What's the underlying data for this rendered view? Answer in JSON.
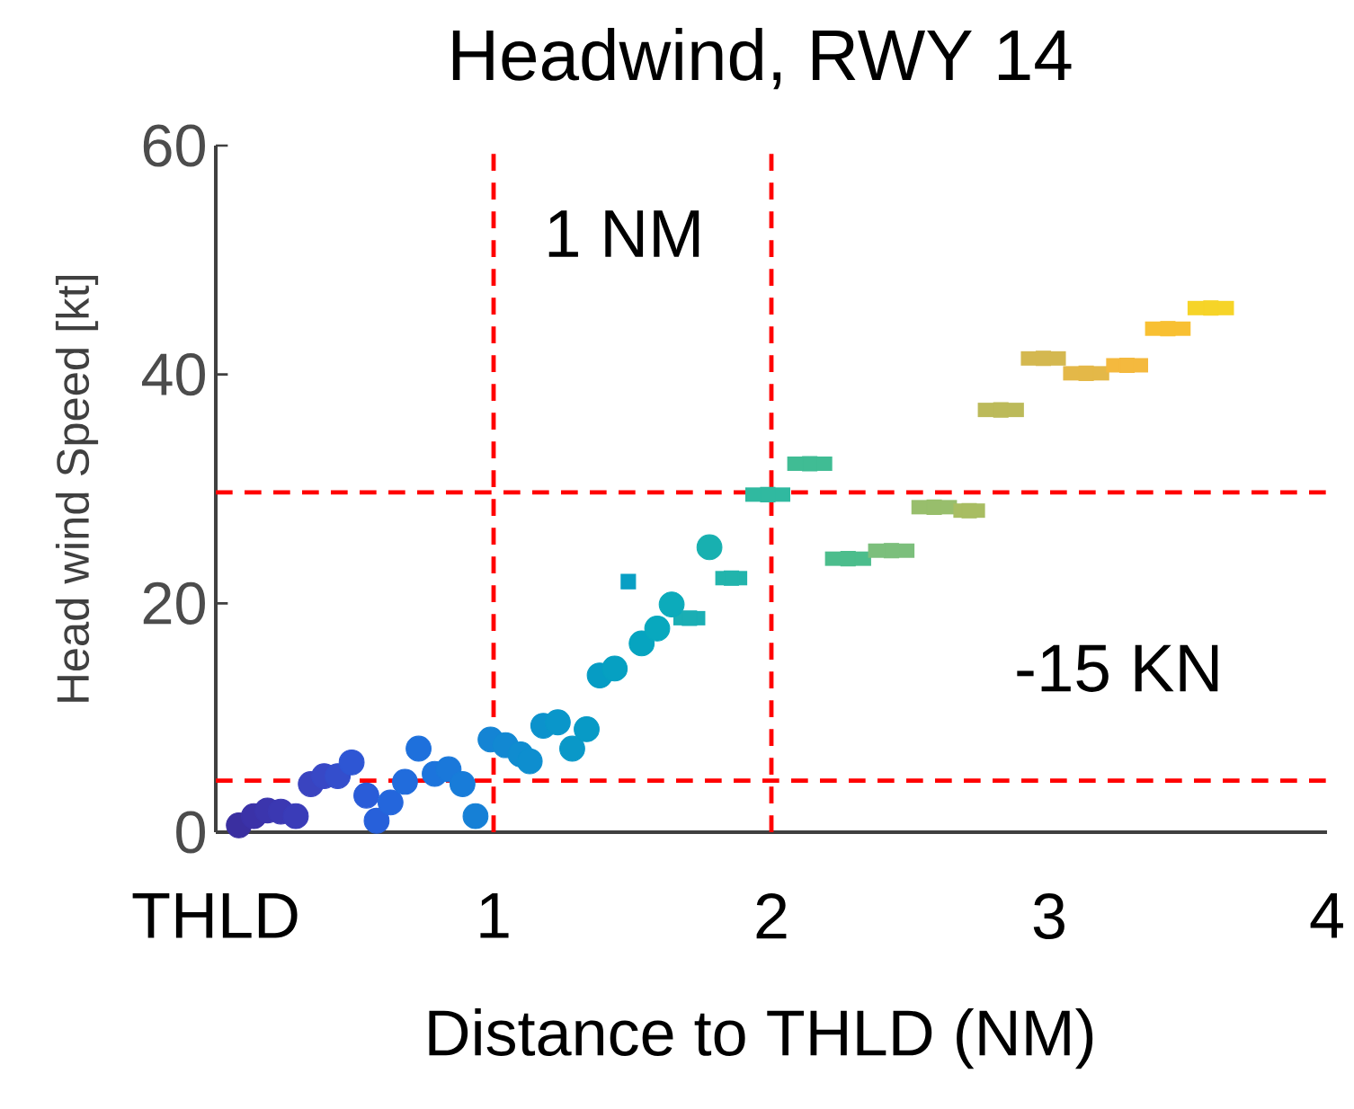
{
  "chart_data": {
    "type": "scatter",
    "title": "Headwind, RWY 14",
    "xlabel": "Distance to THLD (NM)",
    "ylabel": "Head wind Speed [kt]",
    "xlim": [
      0,
      4
    ],
    "ylim": [
      0,
      60
    ],
    "xticks": [
      {
        "value": 0,
        "label": "THLD"
      },
      1,
      2,
      3,
      4
    ],
    "yticks": [
      0,
      20,
      40,
      60
    ],
    "grid": false,
    "annotations": [
      "1 NM",
      "-15 KN"
    ],
    "ref_lines": [
      {
        "axis": "x",
        "value": 1,
        "color": "#ff0000",
        "line_style": "dashed"
      },
      {
        "axis": "x",
        "value": 2,
        "color": "#ff0000",
        "line_style": "dashed"
      },
      {
        "axis": "y",
        "value": 4.5,
        "color": "#ff0000",
        "line_style": "dashed"
      },
      {
        "axis": "y",
        "value": 29.7,
        "color": "#ff0000",
        "line_style": "dashed"
      }
    ],
    "series": [
      {
        "marker": "circle",
        "x": [
          0.083,
          0.137,
          0.186,
          0.234,
          0.288,
          0.342,
          0.39,
          0.439,
          0.489,
          0.542,
          0.579,
          0.629,
          0.681,
          0.73,
          0.788,
          0.838,
          0.888,
          0.935,
          0.989,
          1.043,
          1.097,
          1.13,
          1.179,
          1.231,
          1.283,
          1.335,
          1.382,
          1.436,
          1.533,
          1.589,
          1.641,
          1.777
        ],
        "values": [
          0.6,
          1.4,
          1.9,
          1.8,
          1.4,
          4.2,
          4.9,
          4.9,
          6.1,
          3.2,
          1.0,
          2.6,
          4.4,
          7.3,
          5.1,
          5.5,
          4.2,
          1.4,
          8.1,
          7.6,
          6.8,
          6.2,
          9.3,
          9.6,
          7.3,
          9.0,
          13.7,
          14.3,
          16.5,
          17.8,
          19.9,
          24.9
        ],
        "colors": [
          "#3a2fa0",
          "#3b32a8",
          "#3b35ad",
          "#3b38b2",
          "#3a3cb8",
          "#3a44c0",
          "#3848c6",
          "#344ecc",
          "#2e56d4",
          "#2a5cd8",
          "#2760da",
          "#2466dc",
          "#216cdc",
          "#1e70dc",
          "#1c74dc",
          "#1a78da",
          "#187cd9",
          "#1680d6",
          "#1484d4",
          "#1288d2",
          "#108cd0",
          "#0e8ecf",
          "#0c92cc",
          "#0a96ca",
          "#0a98c8",
          "#089ac6",
          "#069cc4",
          "#06a0c2",
          "#06a4c0",
          "#08a8be",
          "#0cabbb",
          "#18b0b0"
        ]
      },
      {
        "marker": "square",
        "x": [
          1.485,
          1.705,
          1.856,
          1.987,
          2.138,
          2.276,
          2.432,
          2.586,
          2.712,
          2.826,
          2.979,
          3.133,
          3.28,
          3.427,
          3.582
        ],
        "values": [
          21.9,
          18.7,
          22.2,
          29.5,
          32.2,
          23.9,
          24.6,
          28.4,
          28.1,
          36.9,
          41.4,
          40.1,
          40.8,
          44.0,
          45.8
        ],
        "xerrors": [
          [
            1.465,
            1.505
          ],
          [
            1.647,
            1.762
          ],
          [
            1.798,
            1.913
          ],
          [
            1.906,
            2.068
          ],
          [
            2.057,
            2.219
          ],
          [
            2.193,
            2.359
          ],
          [
            2.348,
            2.515
          ],
          [
            2.504,
            2.668
          ],
          [
            2.655,
            2.769
          ],
          [
            2.743,
            2.909
          ],
          [
            2.898,
            3.06
          ],
          [
            3.05,
            3.216
          ],
          [
            3.205,
            3.356
          ],
          [
            3.345,
            3.509
          ],
          [
            3.498,
            3.665
          ]
        ],
        "colors": [
          "#089fc4",
          "#1aaeb4",
          "#22b4ac",
          "#30b9a0",
          "#40bc94",
          "#4cbd8c",
          "#7cbf7c",
          "#98be6c",
          "#a8bd62",
          "#bcba5a",
          "#d4b850",
          "#e4b848",
          "#f4b93e",
          "#f8c032",
          "#f6d428"
        ]
      }
    ]
  }
}
